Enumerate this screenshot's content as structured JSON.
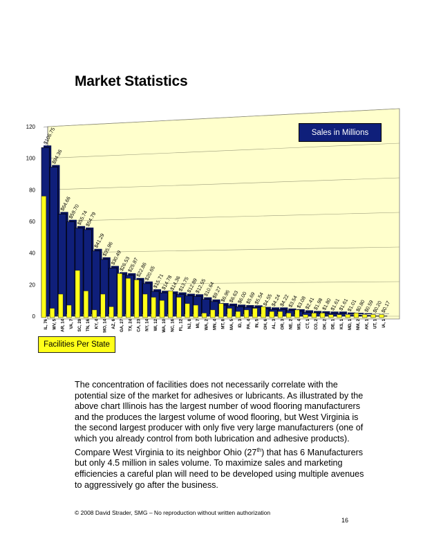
{
  "title": "Market Statistics",
  "legend": {
    "sales": "Sales in Millions",
    "facilities": "Facilities Per State"
  },
  "colors": {
    "sales": "#0f1f7a",
    "facilities": "#ffff19",
    "plot_background": "#ffffcc"
  },
  "chart_data": {
    "type": "bar",
    "ylim": [
      0,
      120
    ],
    "yticks": [
      0,
      20,
      40,
      60,
      80,
      100,
      120
    ],
    "grid": true,
    "categories": [
      "IL, 76",
      "WV, 5",
      "AR, 14",
      "VA, 7",
      "SC, 29",
      "TN, 16",
      "KY, 4",
      "MO, 14",
      "AZ, 6",
      "GA, 27",
      "TX, 24",
      "CA, 23",
      "NY, 14",
      "WI, 12",
      "WA, 10",
      "NC, 16",
      "FL, 12",
      "NJ, 8",
      "MI, 7",
      "WA, 2",
      "MN, 4",
      "MT, 8",
      "MA, 5",
      "ID, 3",
      "PA, 4",
      "IN, 5",
      "OH, 6",
      "AL, 3",
      "OR, 3",
      "NE, 2",
      "MS, 4",
      "CT, 1",
      "CO, 2",
      "OK, 2",
      "DE, 1",
      "KS, 1",
      "MD, 1",
      "NM, 2",
      "AK, 1",
      "UT, 1",
      "IA, 1"
    ],
    "series": [
      {
        "name": "Sales in Millions",
        "values": [
          106.75,
          94.36,
          64.66,
          59.7,
          55.74,
          54.79,
          41.29,
          35.96,
          30.49,
          26.53,
          25.87,
          22.86,
          20.65,
          15.71,
          14.78,
          14.36,
          13.75,
          12.89,
          12.55,
          10.64,
          9.27,
          6.96,
          6.63,
          6.0,
          5.69,
          5.54,
          4.55,
          4.24,
          4.22,
          3.54,
          3.08,
          2.41,
          1.98,
          1.8,
          1.61,
          1.61,
          1.01,
          0.8,
          0.59,
          0.2,
          0.17
        ],
        "labels": [
          "$106.75",
          "$94.36",
          "$64.66",
          "$59.70",
          "$55.74",
          "$54.79",
          "$41.29",
          "$35.96",
          "$30.49",
          "$26.53",
          "$25.87",
          "$22.86",
          "$20.65",
          "$15.71",
          "$14.78",
          "$14.36",
          "$13.75",
          "$12.89",
          "$12.55",
          "$10.64",
          "$9.27",
          "$6.96",
          "$6.63",
          "$6.00",
          "$5.69",
          "$5.54",
          "$4.55",
          "$4.24",
          "$4.22",
          "$3.54",
          "$3.08",
          "$2.41",
          "$1.98",
          "$1.80",
          "$1.61",
          "$1.61",
          "$1.01",
          "$0.80",
          "$0.59",
          "$0.20",
          "$0.17"
        ]
      },
      {
        "name": "Facilities Per State",
        "values": [
          76,
          5,
          14,
          7,
          29,
          16,
          4,
          14,
          6,
          27,
          24,
          23,
          14,
          12,
          10,
          16,
          12,
          8,
          7,
          2,
          4,
          8,
          5,
          3,
          4,
          5,
          6,
          3,
          3,
          2,
          4,
          1,
          2,
          2,
          1,
          1,
          1,
          2,
          1,
          1,
          1
        ]
      }
    ]
  },
  "paragraph": {
    "part1": "The concentration of facilities does not necessarily correlate with the potential size of the market for adhesives or lubricants.  As illustrated by the above chart Illinois has the largest number of wood flooring manufacturers and the produces the largest volume of wood flooring, but West Virginia is the second largest producer with only five very large manufacturers (one of which you already control from both lubrication and adhesive products). Compare West Virginia to its neighbor Ohio (27",
    "sup": "th",
    "part2": ") that has 6 Manufacturers but only 4.5 million in sales volume. To maximize sales and marketing efficiencies a careful plan will need to be developed using multiple avenues to aggressively go after the business."
  },
  "footer": "© 2008 David Strader, SMG – No reproduction without written authorization",
  "page_number": "16"
}
